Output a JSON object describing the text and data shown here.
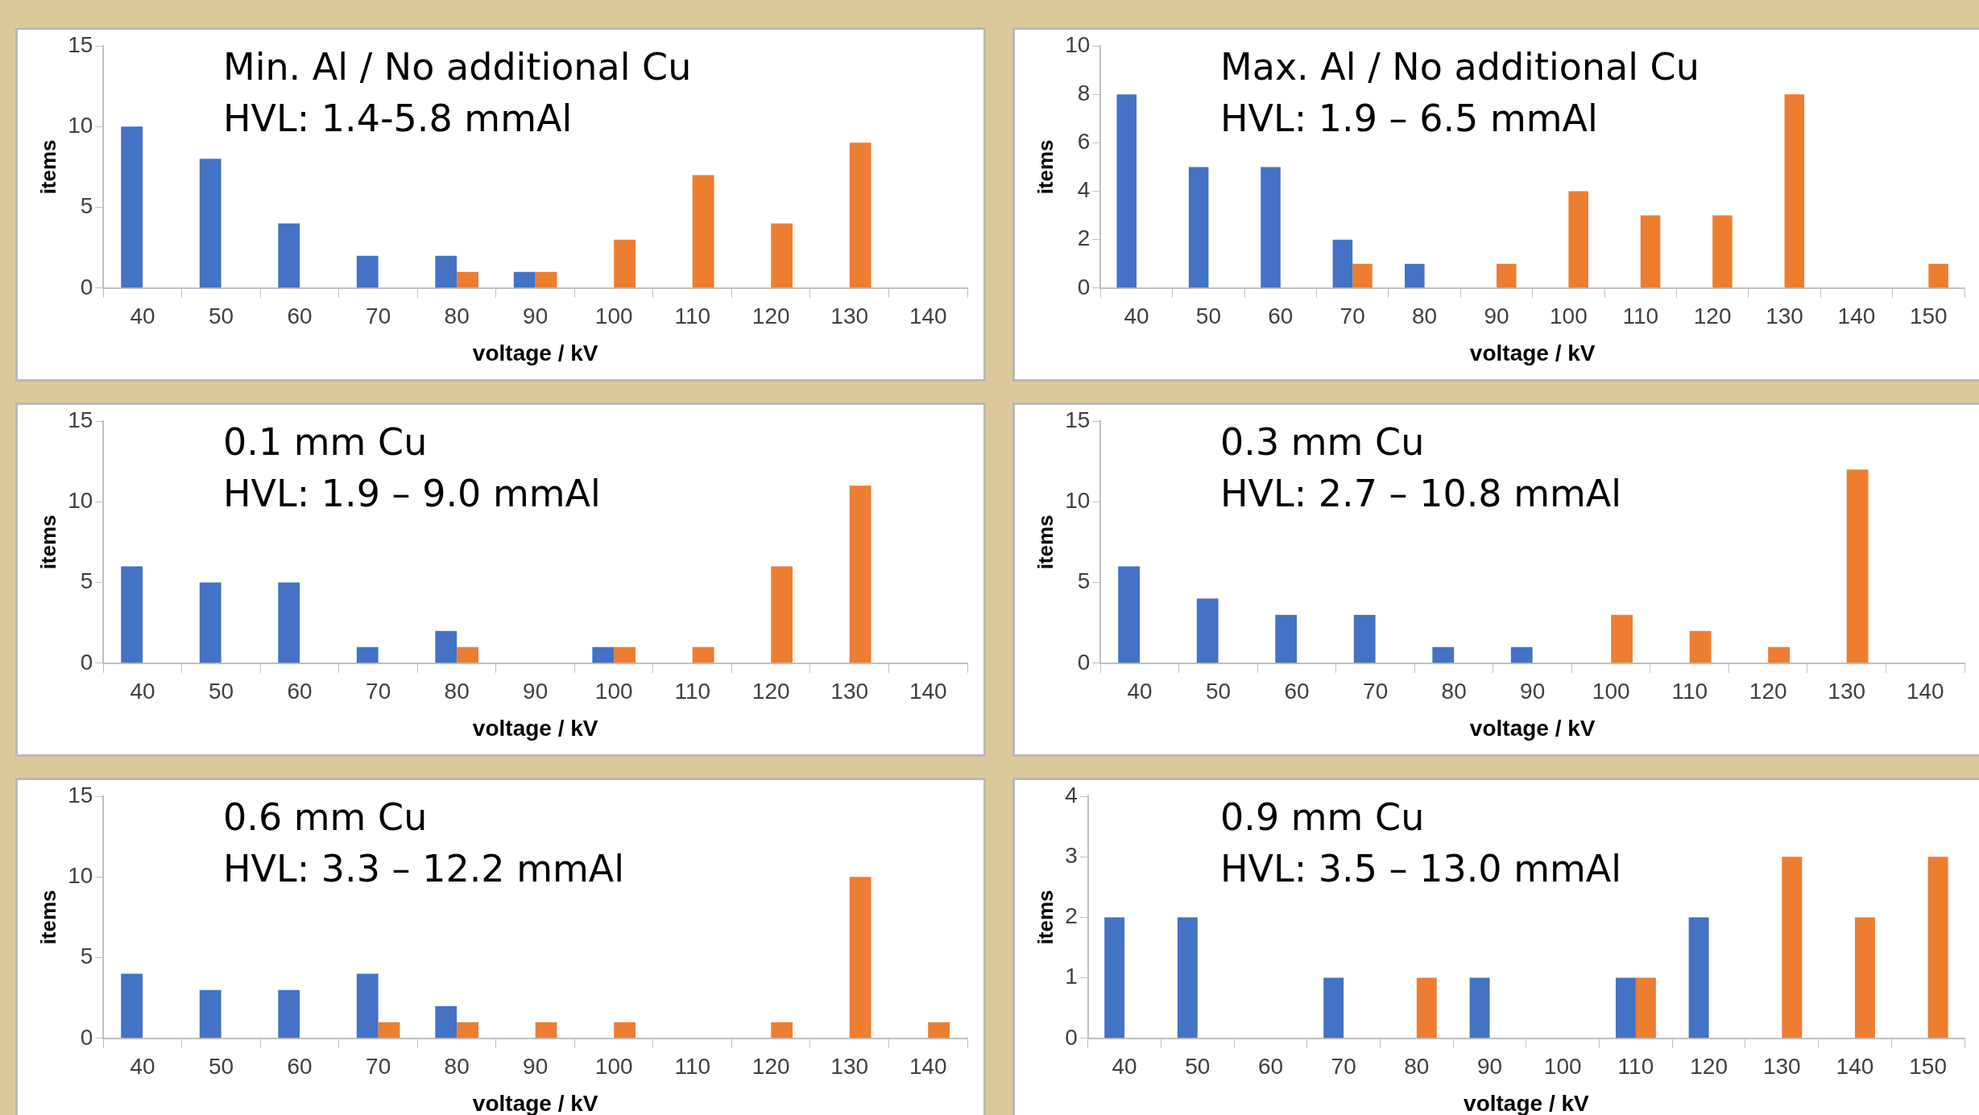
{
  "chart_data": [
    {
      "type": "bar",
      "title": "Min. Al / No additional Cu",
      "subtitle": "HVL: 1.4-5.8 mmAl",
      "xlabel": "voltage / kV",
      "ylabel": "items",
      "categories": [
        "40",
        "50",
        "60",
        "70",
        "80",
        "90",
        "100",
        "110",
        "120",
        "130",
        "140"
      ],
      "series": [
        {
          "color": "#4472c4",
          "values": [
            10,
            8,
            4,
            2,
            2,
            1,
            0,
            0,
            0,
            0,
            0
          ]
        },
        {
          "color": "#ed7d31",
          "values": [
            0,
            0,
            0,
            0,
            1,
            1,
            3,
            7,
            4,
            9,
            0
          ]
        }
      ],
      "ylim": [
        0,
        15
      ],
      "yticks": [
        0,
        5,
        10,
        15
      ],
      "grid": false,
      "legend": false
    },
    {
      "type": "bar",
      "title": "Max. Al / No additional Cu",
      "subtitle": "HVL: 1.9 – 6.5 mmAl",
      "xlabel": "voltage / kV",
      "ylabel": "items",
      "categories": [
        "40",
        "50",
        "60",
        "70",
        "80",
        "90",
        "100",
        "110",
        "120",
        "130",
        "140",
        "150"
      ],
      "series": [
        {
          "color": "#4472c4",
          "values": [
            8,
            5,
            5,
            2,
            1,
            0,
            0,
            0,
            0,
            0,
            0,
            0
          ]
        },
        {
          "color": "#ed7d31",
          "values": [
            0,
            0,
            0,
            1,
            0,
            1,
            4,
            3,
            3,
            8,
            0,
            1
          ]
        }
      ],
      "ylim": [
        0,
        10
      ],
      "yticks": [
        0,
        2,
        4,
        6,
        8,
        10
      ],
      "grid": false,
      "legend": false
    },
    {
      "type": "bar",
      "title": "0.1 mm Cu",
      "subtitle": "HVL: 1.9 – 9.0 mmAl",
      "xlabel": "voltage / kV",
      "ylabel": "items",
      "categories": [
        "40",
        "50",
        "60",
        "70",
        "80",
        "90",
        "100",
        "110",
        "120",
        "130",
        "140"
      ],
      "series": [
        {
          "color": "#4472c4",
          "values": [
            6,
            5,
            5,
            1,
            2,
            0,
            1,
            0,
            0,
            0,
            0
          ]
        },
        {
          "color": "#ed7d31",
          "values": [
            0,
            0,
            0,
            0,
            1,
            0,
            1,
            1,
            6,
            11,
            0
          ]
        }
      ],
      "ylim": [
        0,
        15
      ],
      "yticks": [
        0,
        5,
        10,
        15
      ],
      "grid": false,
      "legend": false
    },
    {
      "type": "bar",
      "title": "0.3 mm Cu",
      "subtitle": "HVL: 2.7 – 10.8 mmAl",
      "xlabel": "voltage / kV",
      "ylabel": "items",
      "categories": [
        "40",
        "50",
        "60",
        "70",
        "80",
        "90",
        "100",
        "110",
        "120",
        "130",
        "140"
      ],
      "series": [
        {
          "color": "#4472c4",
          "values": [
            6,
            4,
            3,
            3,
            1,
            1,
            0,
            0,
            0,
            0,
            0
          ]
        },
        {
          "color": "#ed7d31",
          "values": [
            0,
            0,
            0,
            0,
            0,
            0,
            3,
            2,
            1,
            12,
            0
          ]
        }
      ],
      "ylim": [
        0,
        15
      ],
      "yticks": [
        0,
        5,
        10,
        15
      ],
      "grid": false,
      "legend": false
    },
    {
      "type": "bar",
      "title": "0.6 mm Cu",
      "subtitle": "HVL: 3.3 – 12.2 mmAl",
      "xlabel": "voltage / kV",
      "ylabel": "items",
      "categories": [
        "40",
        "50",
        "60",
        "70",
        "80",
        "90",
        "100",
        "110",
        "120",
        "130",
        "140"
      ],
      "series": [
        {
          "color": "#4472c4",
          "values": [
            4,
            3,
            3,
            4,
            2,
            0,
            0,
            0,
            0,
            0,
            0
          ]
        },
        {
          "color": "#ed7d31",
          "values": [
            0,
            0,
            0,
            1,
            1,
            1,
            1,
            0,
            1,
            10,
            1
          ]
        }
      ],
      "ylim": [
        0,
        15
      ],
      "yticks": [
        0,
        5,
        10,
        15
      ],
      "grid": false,
      "legend": false
    },
    {
      "type": "bar",
      "title": "0.9 mm Cu",
      "subtitle": "HVL: 3.5 – 13.0 mmAl",
      "xlabel": "voltage / kV",
      "ylabel": "items",
      "categories": [
        "40",
        "50",
        "60",
        "70",
        "80",
        "90",
        "100",
        "110",
        "120",
        "130",
        "140",
        "150"
      ],
      "series": [
        {
          "color": "#4472c4",
          "values": [
            2,
            2,
            0,
            1,
            0,
            1,
            0,
            1,
            2,
            0,
            0,
            0
          ]
        },
        {
          "color": "#ed7d31",
          "values": [
            0,
            0,
            0,
            0,
            1,
            0,
            0,
            1,
            0,
            3,
            2,
            3
          ]
        }
      ],
      "ylim": [
        0,
        4
      ],
      "yticks": [
        0,
        1,
        2,
        3,
        4
      ],
      "grid": false,
      "legend": false
    }
  ]
}
